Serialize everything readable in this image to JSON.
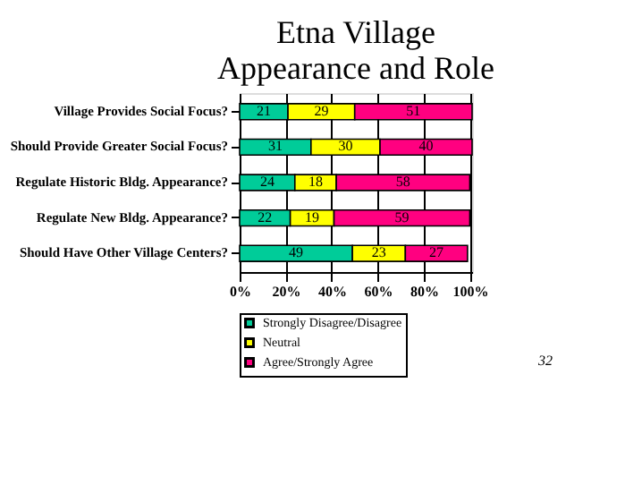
{
  "chart_data": {
    "type": "bar",
    "orientation": "horizontal",
    "stacked": true,
    "title": [
      "Etna Village",
      "Appearance and Role"
    ],
    "categories": [
      "Village Provides Social Focus?",
      "Should Provide Greater Social Focus?",
      "Regulate Historic Bldg. Appearance?",
      "Regulate New Bldg. Appearance?",
      "Should Have Other Village Centers?"
    ],
    "series": [
      {
        "name": "Strongly Disagree/Disagree",
        "color": "#00cc99",
        "values": [
          21,
          31,
          24,
          22,
          49
        ]
      },
      {
        "name": "Neutral",
        "color": "#ffff00",
        "values": [
          29,
          30,
          18,
          19,
          23
        ]
      },
      {
        "name": "Agree/Strongly Agree",
        "color": "#ff0080",
        "values": [
          51,
          40,
          58,
          59,
          27
        ]
      }
    ],
    "xlim": [
      0,
      101
    ],
    "xticks": [
      {
        "value": 0,
        "label": "0%"
      },
      {
        "value": 20,
        "label": "20%"
      },
      {
        "value": 40,
        "label": "40%"
      },
      {
        "value": 60,
        "label": "60%"
      },
      {
        "value": 80,
        "label": "80%"
      },
      {
        "value": 100,
        "label": "100%"
      }
    ],
    "grid": "x",
    "legend": "bottom",
    "data_labels": true,
    "annotations": [
      "32"
    ]
  }
}
